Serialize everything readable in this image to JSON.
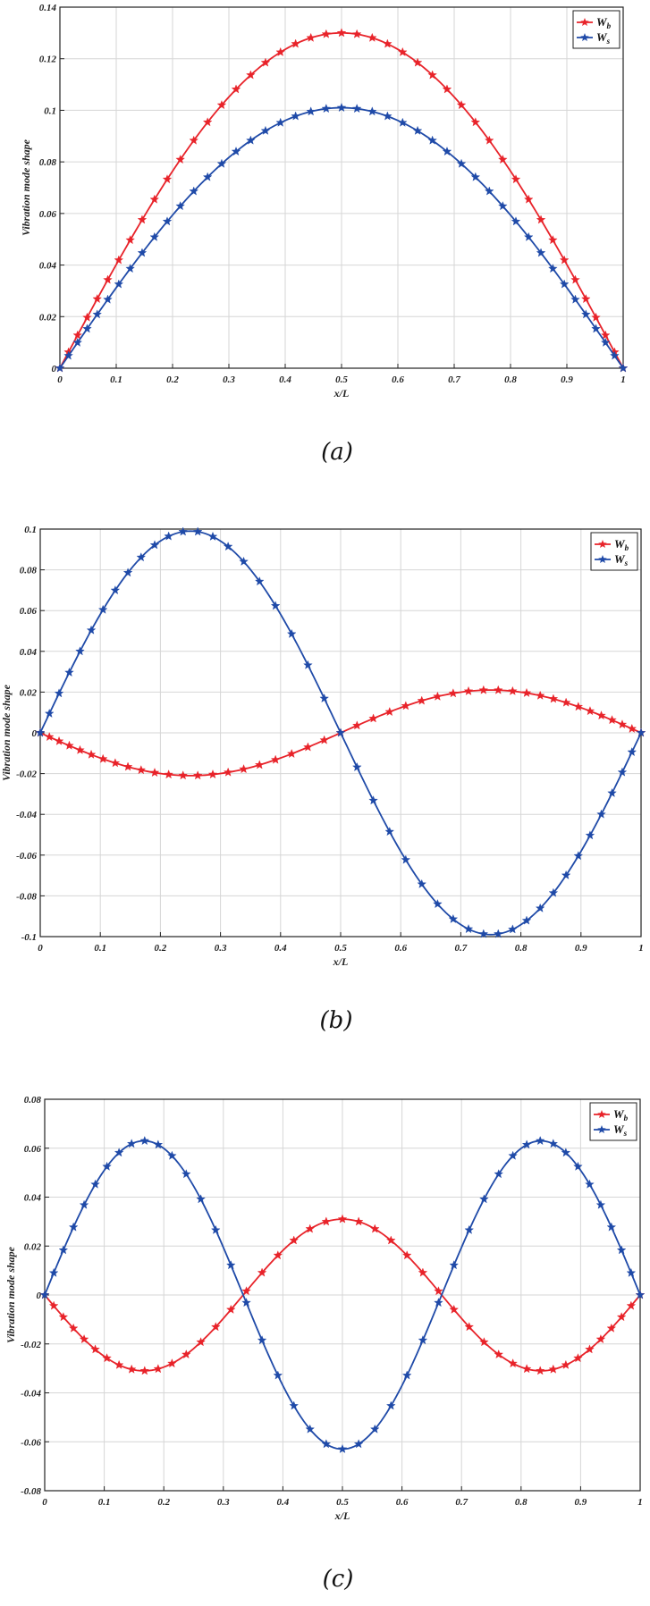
{
  "chart_data": [
    {
      "type": "line",
      "caption": "(a)",
      "xlabel": "x/L",
      "ylabel": "Vibration mode shape",
      "xlim": [
        0,
        1
      ],
      "ylim": [
        0,
        0.14
      ],
      "xticks": [
        "0",
        "0.1",
        "0.2",
        "0.3",
        "0.4",
        "0.5",
        "0.6",
        "0.7",
        "0.8",
        "0.9",
        "1"
      ],
      "yticks": [
        "0",
        "0.02",
        "0.04",
        "0.06",
        "0.08",
        "0.1",
        "0.12",
        "0.14"
      ],
      "legend_position": "top-right",
      "grid": true,
      "series": [
        {
          "name": "W",
          "sub": "b",
          "color": "#e8232a",
          "amplitude": 0.13,
          "mode": 1
        },
        {
          "name": "W",
          "sub": "s",
          "color": "#1f4aa8",
          "amplitude": 0.101,
          "mode": 1
        }
      ]
    },
    {
      "type": "line",
      "caption": "(b)",
      "xlabel": "x/L",
      "ylabel": "Vibration mode shape",
      "xlim": [
        0,
        1
      ],
      "ylim": [
        -0.1,
        0.1
      ],
      "xticks": [
        "0",
        "0.1",
        "0.2",
        "0.3",
        "0.4",
        "0.5",
        "0.6",
        "0.7",
        "0.8",
        "0.9",
        "1"
      ],
      "yticks": [
        "-0.1",
        "-0.08",
        "-0.06",
        "-0.04",
        "-0.02",
        "0",
        "0.02",
        "0.04",
        "0.06",
        "0.08",
        "0.1"
      ],
      "legend_position": "top-right",
      "grid": true,
      "series": [
        {
          "name": "W",
          "sub": "b",
          "color": "#e8232a",
          "amplitude": -0.021,
          "mode": 2
        },
        {
          "name": "W",
          "sub": "s",
          "color": "#1f4aa8",
          "amplitude": 0.099,
          "mode": 2
        }
      ]
    },
    {
      "type": "line",
      "caption": "(c)",
      "xlabel": "x/L",
      "ylabel": "Vibration mode shape",
      "xlim": [
        0,
        1
      ],
      "ylim": [
        -0.08,
        0.08
      ],
      "xticks": [
        "0",
        "0.1",
        "0.2",
        "0.3",
        "0.4",
        "0.5",
        "0.6",
        "0.7",
        "0.8",
        "0.9",
        "1"
      ],
      "yticks": [
        "-0.08",
        "-0.06",
        "-0.04",
        "-0.02",
        "0",
        "0.02",
        "0.04",
        "0.06",
        "0.08"
      ],
      "legend_position": "top-right",
      "grid": true,
      "series": [
        {
          "name": "W",
          "sub": "b",
          "color": "#e8232a",
          "amplitude": -0.031,
          "mode": 3
        },
        {
          "name": "W",
          "sub": "s",
          "color": "#1f4aa8",
          "amplitude": 0.063,
          "mode": 3
        }
      ]
    }
  ]
}
